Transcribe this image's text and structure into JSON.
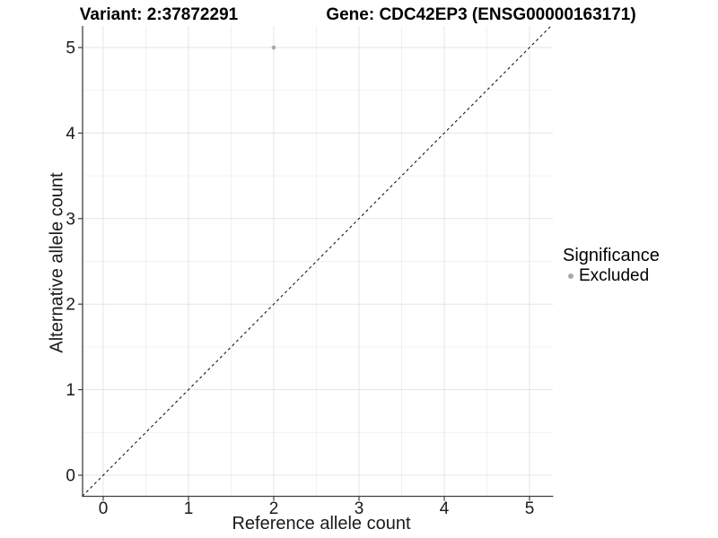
{
  "figure": {
    "titles": {
      "left": "Variant: 2:37872291",
      "right": "Gene: CDC42EP3 (ENSG00000163171)"
    }
  },
  "axes": {
    "x": {
      "label": "Reference allele count",
      "ticks": [
        "0",
        "1",
        "2",
        "3",
        "4",
        "5"
      ]
    },
    "y": {
      "label": "Alternative allele count",
      "ticks": [
        "0",
        "1",
        "2",
        "3",
        "4",
        "5"
      ]
    }
  },
  "legend": {
    "title": "Significance",
    "entries": [
      {
        "label": "Excluded",
        "color": "#a9a9a9",
        "marker": "circle-icon"
      }
    ]
  },
  "chart_data": {
    "type": "scatter",
    "title_left": "Variant: 2:37872291",
    "title_right": "Gene: CDC42EP3 (ENSG00000163171)",
    "xlabel": "Reference allele count",
    "ylabel": "Alternative allele count",
    "xlim": [
      -0.25,
      5.25
    ],
    "ylim": [
      -0.25,
      5.25
    ],
    "x_ticks": [
      0,
      1,
      2,
      3,
      4,
      5
    ],
    "y_ticks": [
      0,
      1,
      2,
      3,
      4,
      5
    ],
    "grid": "major+minor",
    "legend_position": "right",
    "legend_title": "Significance",
    "series": [
      {
        "name": "Excluded",
        "color": "#a9a9a9",
        "points": [
          {
            "x": 2,
            "y": 5
          }
        ]
      }
    ],
    "reference_line": {
      "type": "identity-diagonal",
      "equation": "y = x",
      "style": "dashed",
      "color": "#1a1a1a"
    },
    "colors": {
      "background": "#ffffff",
      "grid_major": "#e4e4e4",
      "grid_minor": "#f0f0f0",
      "axis_line": "#404040",
      "tick_label": "#1a1a1a",
      "point": "#a9a9a9"
    }
  }
}
